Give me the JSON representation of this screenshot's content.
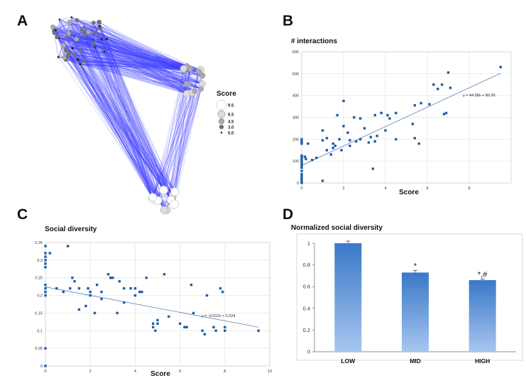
{
  "panels": {
    "a": "A",
    "b": "B",
    "c": "C",
    "d": "D"
  },
  "network": {
    "legend_title": "Score",
    "legend": [
      {
        "label": "9.5",
        "value": 9.5,
        "fill": "#ffffff"
      },
      {
        "label": "6.5",
        "value": 6.5,
        "fill": "#dcdcdc"
      },
      {
        "label": "4.5",
        "value": 4.5,
        "fill": "#a9a9a9"
      },
      {
        "label": "3.0",
        "value": 3.0,
        "fill": "#707070"
      },
      {
        "label": "0.0",
        "value": 0.0,
        "fill": "#1e1e1e"
      }
    ],
    "edge_color": "#3c3cff"
  },
  "chart_data": [
    {
      "id": "B",
      "type": "scatter",
      "title": "# interactions",
      "xlabel": "Score",
      "ylabel": "",
      "xlim": [
        0,
        10
      ],
      "ylim": [
        0,
        600
      ],
      "xticks": [
        0,
        2,
        4,
        6,
        8
      ],
      "yticks": [
        0,
        100,
        200,
        300,
        400,
        500,
        600
      ],
      "grid": true,
      "color": "#1f5fa6",
      "trend": {
        "label": "y = 44.38x + 80.26",
        "slope": 44.38,
        "intercept": 80.26,
        "x_range": [
          0,
          9.5
        ]
      },
      "points": [
        [
          0,
          0
        ],
        [
          0,
          10
        ],
        [
          0,
          20
        ],
        [
          0,
          30
        ],
        [
          0,
          40
        ],
        [
          0,
          55
        ],
        [
          0,
          70
        ],
        [
          0,
          80
        ],
        [
          0,
          90
        ],
        [
          0,
          100
        ],
        [
          0,
          110
        ],
        [
          0,
          120
        ],
        [
          0,
          180
        ],
        [
          0,
          190
        ],
        [
          0,
          200
        ],
        [
          0,
          125
        ],
        [
          0.15,
          120
        ],
        [
          0.2,
          110
        ],
        [
          0.3,
          180
        ],
        [
          0.5,
          105
        ],
        [
          0.7,
          115
        ],
        [
          1,
          10
        ],
        [
          1,
          240
        ],
        [
          1,
          195
        ],
        [
          1.2,
          150
        ],
        [
          1.2,
          205
        ],
        [
          1.4,
          130
        ],
        [
          1.5,
          180
        ],
        [
          1.5,
          160
        ],
        [
          1.6,
          170
        ],
        [
          1.7,
          310
        ],
        [
          1.8,
          200
        ],
        [
          1.9,
          150
        ],
        [
          2,
          375
        ],
        [
          2,
          260
        ],
        [
          2.2,
          230
        ],
        [
          2.3,
          170
        ],
        [
          2.3,
          195
        ],
        [
          2.5,
          300
        ],
        [
          2.6,
          190
        ],
        [
          2.8,
          200
        ],
        [
          2.8,
          295
        ],
        [
          3,
          250
        ],
        [
          3.2,
          185
        ],
        [
          3.3,
          210
        ],
        [
          3.4,
          65
        ],
        [
          3.5,
          310
        ],
        [
          3.5,
          190
        ],
        [
          3.6,
          215
        ],
        [
          3.8,
          320
        ],
        [
          4,
          240
        ],
        [
          4.1,
          310
        ],
        [
          4.2,
          295
        ],
        [
          4.5,
          320
        ],
        [
          4.5,
          200
        ],
        [
          5.3,
          270
        ],
        [
          5.4,
          355
        ],
        [
          5.4,
          205
        ],
        [
          5.6,
          180
        ],
        [
          5.7,
          365
        ],
        [
          6.1,
          360
        ],
        [
          6.3,
          450
        ],
        [
          6.5,
          430
        ],
        [
          6.7,
          450
        ],
        [
          6.8,
          315
        ],
        [
          6.9,
          320
        ],
        [
          7,
          505
        ],
        [
          7.1,
          435
        ],
        [
          9.5,
          530
        ]
      ]
    },
    {
      "id": "C",
      "type": "scatter",
      "title": "Social diversity",
      "xlabel": "Score",
      "ylabel": "",
      "xlim": [
        0,
        10
      ],
      "ylim": [
        0,
        0.35
      ],
      "xticks": [
        0,
        2,
        4,
        6,
        8,
        10
      ],
      "ytick_labels": [
        "0",
        "0.05",
        "0.1",
        "0.15",
        "0.2",
        "0.25",
        "0.3",
        "0.35"
      ],
      "grid": true,
      "color": "#1f5fa6",
      "trend": {
        "label": "y = -0.012x + 0.224",
        "slope": -0.012,
        "intercept": 0.224,
        "x_range": [
          0,
          9.5
        ]
      },
      "points": [
        [
          0,
          0
        ],
        [
          0,
          0.05
        ],
        [
          0,
          0.2
        ],
        [
          0,
          0.21
        ],
        [
          0,
          0.22
        ],
        [
          0,
          0.23
        ],
        [
          0,
          0.28
        ],
        [
          0,
          0.29
        ],
        [
          0,
          0.3
        ],
        [
          0,
          0.31
        ],
        [
          0,
          0.32
        ],
        [
          0,
          0.34
        ],
        [
          0.2,
          0.32
        ],
        [
          0.5,
          0.22
        ],
        [
          0.8,
          0.21
        ],
        [
          1,
          0.34
        ],
        [
          1.1,
          0.22
        ],
        [
          1.2,
          0.25
        ],
        [
          1.3,
          0.24
        ],
        [
          1.5,
          0.22
        ],
        [
          1.5,
          0.16
        ],
        [
          1.8,
          0.17
        ],
        [
          1.9,
          0.22
        ],
        [
          2,
          0.21
        ],
        [
          2,
          0.2
        ],
        [
          2.2,
          0.15
        ],
        [
          2.3,
          0.23
        ],
        [
          2.5,
          0.21
        ],
        [
          2.5,
          0.19
        ],
        [
          2.8,
          0.26
        ],
        [
          2.9,
          0.25
        ],
        [
          3,
          0.25
        ],
        [
          3.2,
          0.15
        ],
        [
          3.3,
          0.24
        ],
        [
          3.5,
          0.22
        ],
        [
          3.5,
          0.18
        ],
        [
          3.8,
          0.22
        ],
        [
          4,
          0.22
        ],
        [
          4,
          0.2
        ],
        [
          4.2,
          0.21
        ],
        [
          4.3,
          0.21
        ],
        [
          4.5,
          0.25
        ],
        [
          4.8,
          0.12
        ],
        [
          4.8,
          0.11
        ],
        [
          4.9,
          0.1
        ],
        [
          5,
          0.12
        ],
        [
          5,
          0.13
        ],
        [
          5.3,
          0.26
        ],
        [
          5.5,
          0.14
        ],
        [
          6,
          0.12
        ],
        [
          6.2,
          0.11
        ],
        [
          6.3,
          0.11
        ],
        [
          6.5,
          0.23
        ],
        [
          6.6,
          0.15
        ],
        [
          7,
          0.1
        ],
        [
          7.1,
          0.09
        ],
        [
          7.2,
          0.2
        ],
        [
          7.5,
          0.11
        ],
        [
          7.6,
          0.1
        ],
        [
          7.8,
          0.22
        ],
        [
          7.9,
          0.21
        ],
        [
          8,
          0.11
        ],
        [
          8,
          0.1
        ],
        [
          9.5,
          0.1
        ]
      ]
    },
    {
      "id": "D",
      "type": "bar",
      "title": "Normalized social diversity",
      "categories": [
        "LOW",
        "MID",
        "HIGH"
      ],
      "values": [
        1.0,
        0.73,
        0.66
      ],
      "errors": [
        0.02,
        0.02,
        0.01
      ],
      "annotations": [
        "",
        "*",
        "*,#"
      ],
      "ylim": [
        0,
        1
      ],
      "ytick_labels": [
        "0",
        "0.2",
        "0.4",
        "0.6",
        "0.8",
        "1"
      ],
      "xlabel": "",
      "ylabel": "",
      "color_top": "#3a78c8",
      "color_bottom": "#a7c6ef"
    }
  ]
}
